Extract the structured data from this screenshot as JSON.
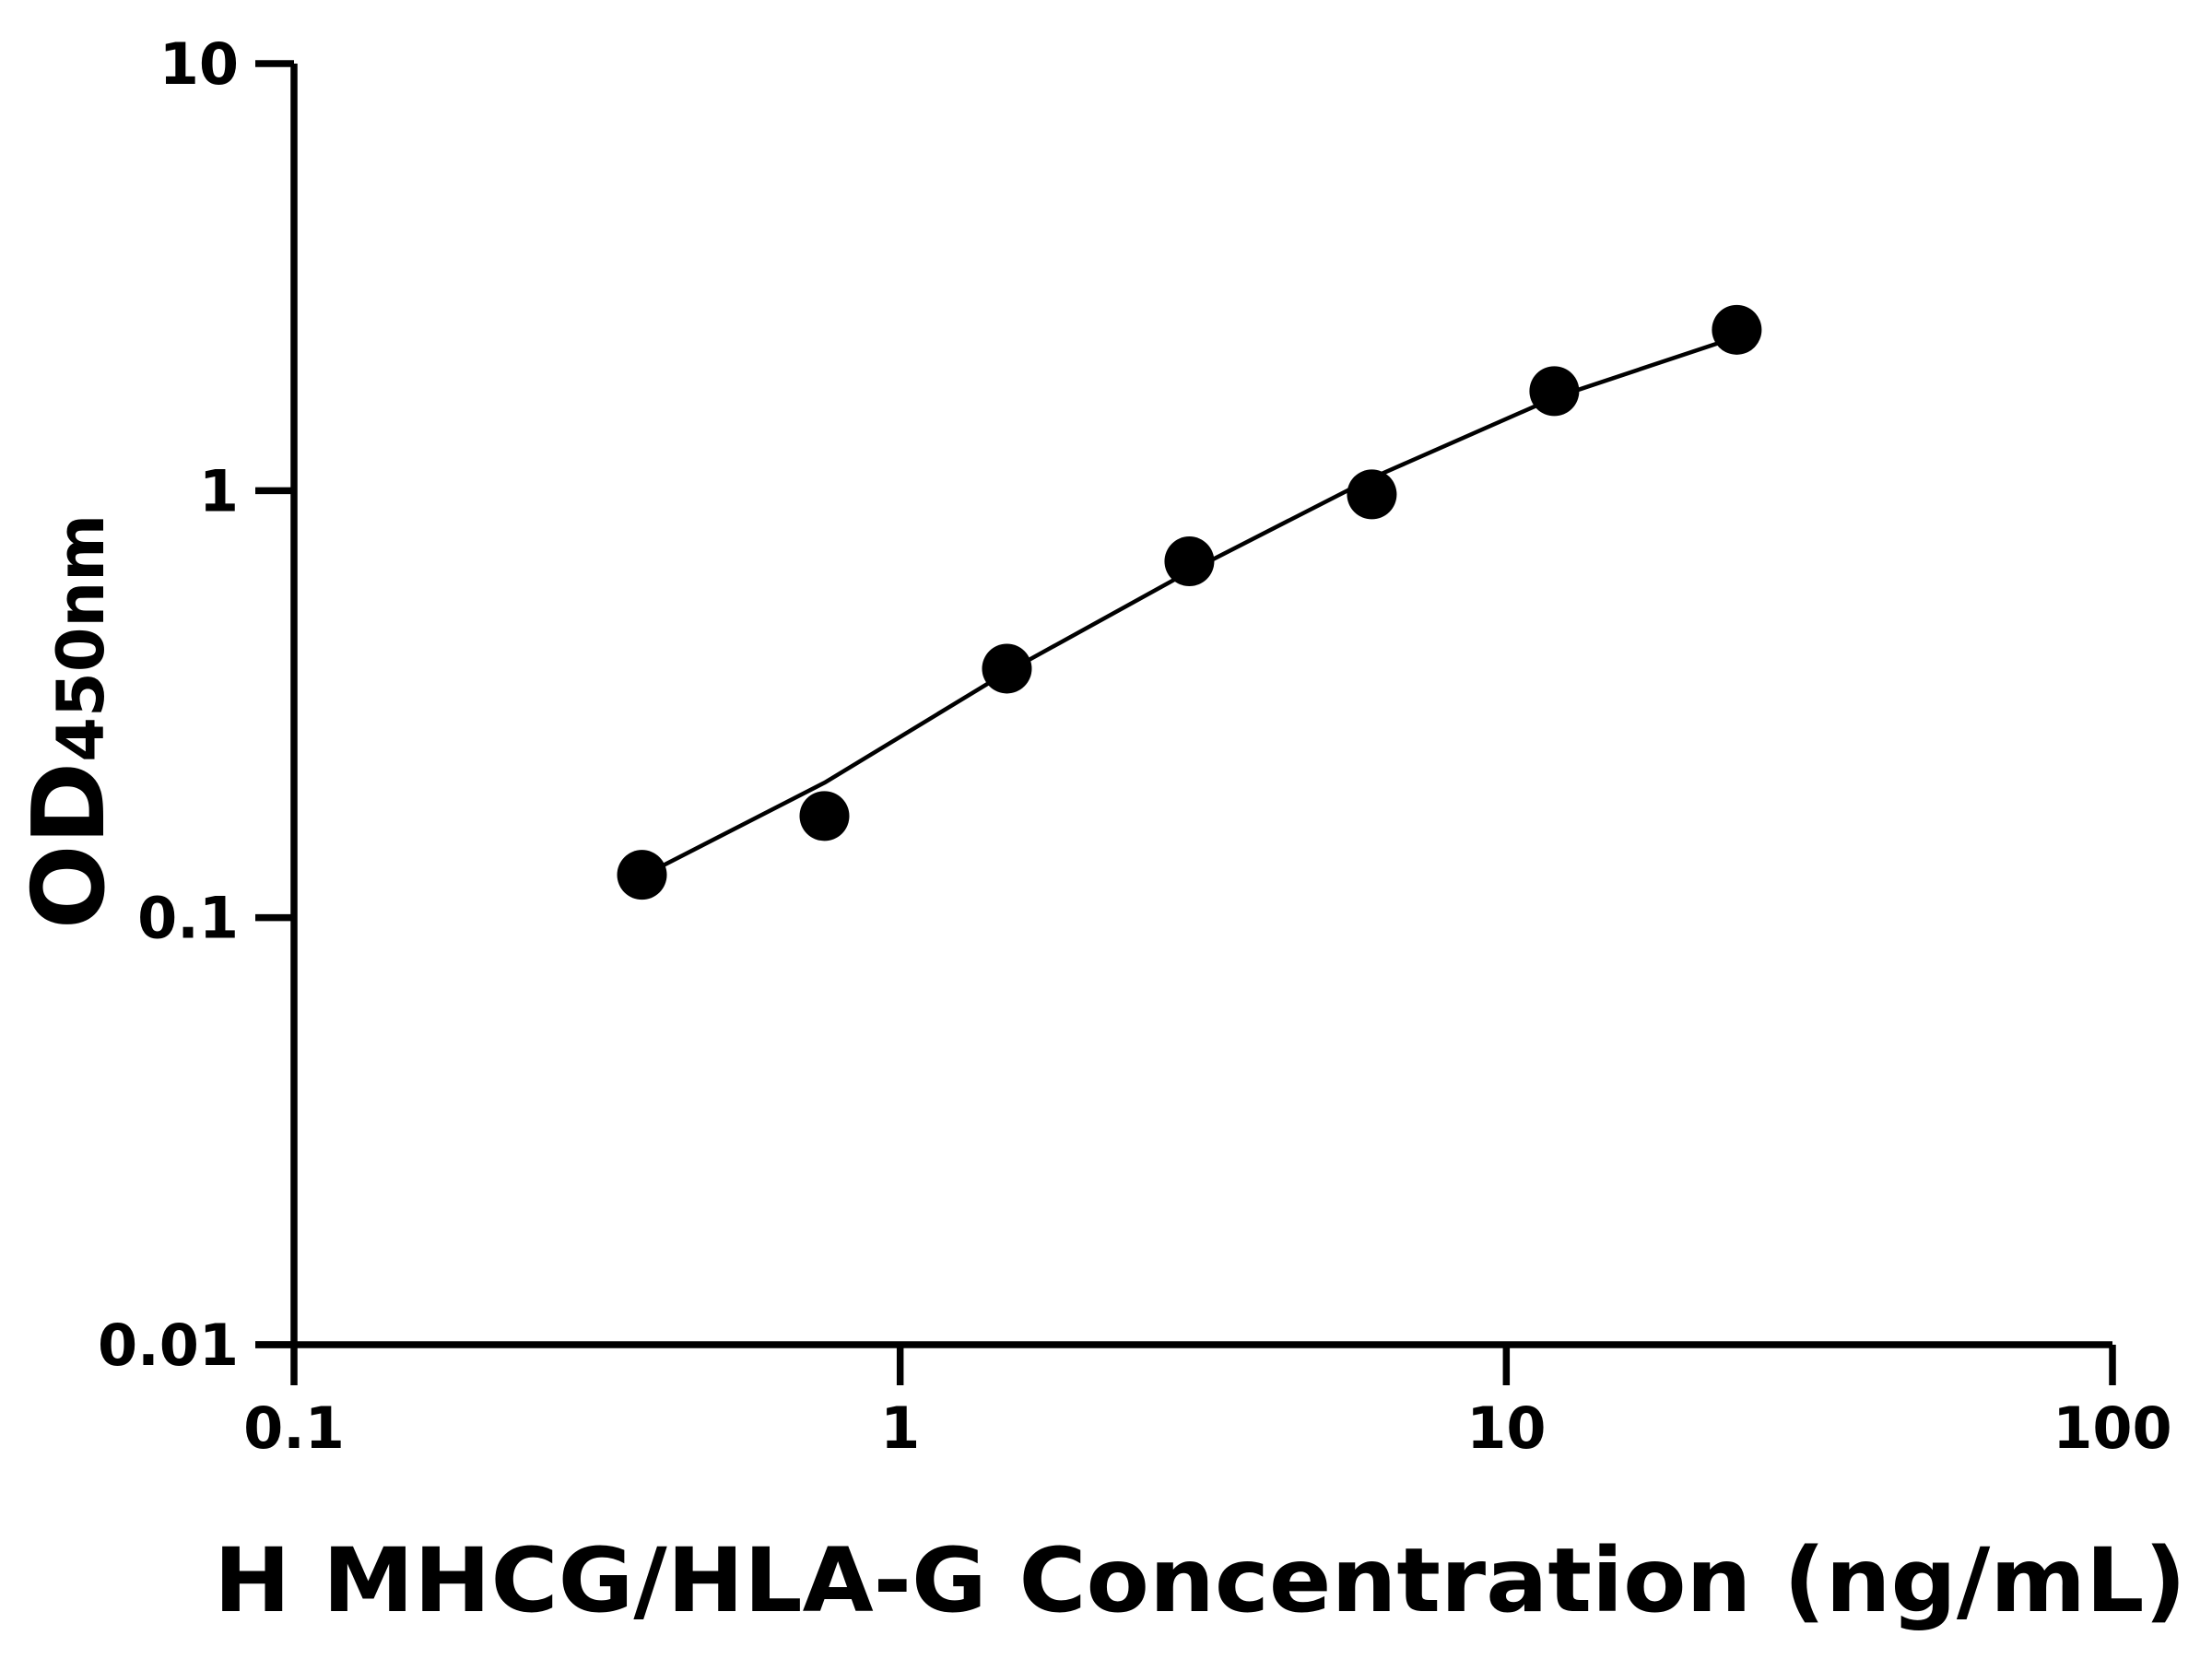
{
  "chart_data": {
    "type": "scatter",
    "x_label": "H MHCG/HLA-G Concentration (ng/mL)",
    "y_label": {
      "main": "OD",
      "sub": "450nm"
    },
    "x_log": true,
    "y_log": true,
    "xlim": [
      0.1,
      100
    ],
    "ylim": [
      0.01,
      10
    ],
    "xticks": [
      0.1,
      1,
      10,
      100
    ],
    "yticks": [
      0.01,
      0.1,
      1,
      10
    ],
    "x": [
      0.375,
      0.75,
      1.5,
      3,
      6,
      12,
      24
    ],
    "series": [
      {
        "kind": "points",
        "color": "#000000",
        "values": [
          0.126,
          0.173,
          0.383,
          0.683,
          0.98,
          1.71,
          2.38
        ]
      },
      {
        "kind": "fit",
        "color": "#000000",
        "values": [
          0.125,
          0.207,
          0.376,
          0.647,
          1.07,
          1.65,
          2.29
        ]
      }
    ]
  }
}
